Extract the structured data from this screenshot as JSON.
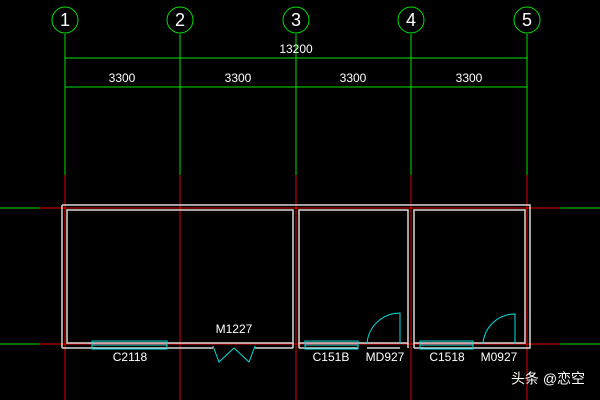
{
  "axes": [
    {
      "label": "1"
    },
    {
      "label": "2"
    },
    {
      "label": "3"
    },
    {
      "label": "4"
    },
    {
      "label": "5"
    }
  ],
  "dimensions": {
    "total": "13200",
    "spans": [
      "3300",
      "3300",
      "3300",
      "3300"
    ]
  },
  "openings": [
    {
      "label": "C2118"
    },
    {
      "label": "M1227"
    },
    {
      "label": "C151B"
    },
    {
      "label": "MD927"
    },
    {
      "label": "C1518"
    },
    {
      "label": "M0927"
    }
  ],
  "watermark": "头条 @恋空"
}
